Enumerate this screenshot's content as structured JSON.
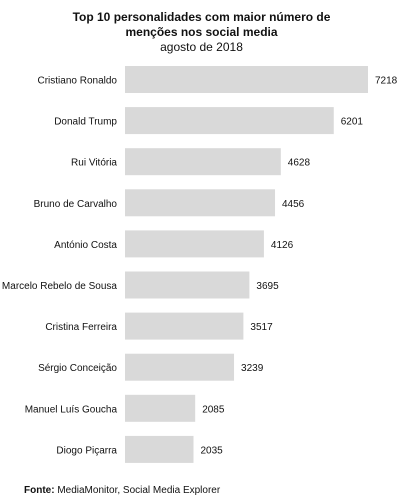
{
  "chart_data": {
    "type": "bar",
    "orientation": "horizontal",
    "title": "Top 10 personalidades com maior número de",
    "title_line2": "menções nos social media",
    "subtitle": "agosto de 2018",
    "categories": [
      "Cristiano Ronaldo",
      "Donald Trump",
      "Rui Vitória",
      "Bruno de Carvalho",
      "António Costa",
      "Marcelo Rebelo de Sousa",
      "Cristina Ferreira",
      "Sérgio Conceição",
      "Manuel Luís Goucha",
      "Diogo Piçarra"
    ],
    "values": [
      7218,
      6201,
      4628,
      4456,
      4126,
      3695,
      3517,
      3239,
      2085,
      2035
    ],
    "xlim": [
      0,
      7218
    ],
    "bar_color": "#d9d9d9",
    "grid": false,
    "legend": "none"
  },
  "source": {
    "label": "Fonte:",
    "text": " MediaMonitor, Social Media Explorer"
  }
}
